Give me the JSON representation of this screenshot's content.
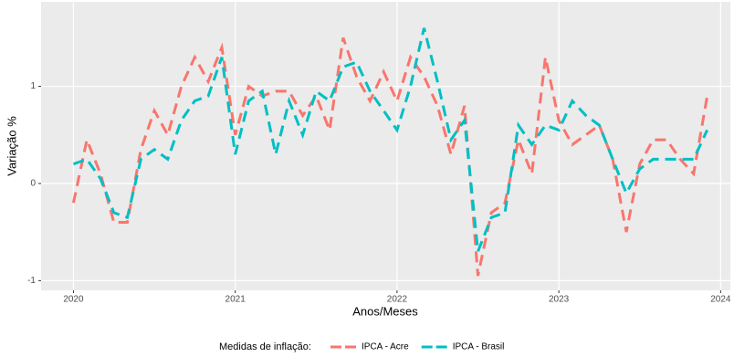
{
  "chart_data": {
    "type": "line",
    "x_label": "Anos/Meses",
    "y_label": "Variação %",
    "x": [
      2020,
      2020.083,
      2020.167,
      2020.25,
      2020.333,
      2020.417,
      2020.5,
      2020.583,
      2020.667,
      2020.75,
      2020.833,
      2020.917,
      2021,
      2021.083,
      2021.167,
      2021.25,
      2021.333,
      2021.417,
      2021.5,
      2021.583,
      2021.667,
      2021.75,
      2021.833,
      2021.917,
      2022,
      2022.083,
      2022.167,
      2022.25,
      2022.333,
      2022.417,
      2022.5,
      2022.583,
      2022.667,
      2022.75,
      2022.833,
      2022.917,
      2023,
      2023.083,
      2023.167,
      2023.25,
      2023.333,
      2023.417,
      2023.5,
      2023.583,
      2023.667,
      2023.75,
      2023.833,
      2023.917
    ],
    "series": [
      {
        "name": "IPCA - Acre",
        "color": "#F8766D",
        "values": [
          -0.2,
          0.45,
          0.1,
          -0.4,
          -0.4,
          0.35,
          0.75,
          0.5,
          1.0,
          1.3,
          1.05,
          1.4,
          0.5,
          1.0,
          0.9,
          0.95,
          0.95,
          0.7,
          0.9,
          0.55,
          1.5,
          1.1,
          0.85,
          1.15,
          0.85,
          1.3,
          1.1,
          0.8,
          0.3,
          0.8,
          -0.95,
          -0.3,
          -0.2,
          0.45,
          0.1,
          1.3,
          0.65,
          0.4,
          0.5,
          0.6,
          0.25,
          -0.5,
          0.2,
          0.45,
          0.45,
          0.25,
          0.1,
          0.9
        ]
      },
      {
        "name": "IPCA - Brasil",
        "color": "#00BFC4",
        "values": [
          0.2,
          0.25,
          0.05,
          -0.3,
          -0.35,
          0.25,
          0.35,
          0.25,
          0.65,
          0.85,
          0.9,
          1.3,
          0.3,
          0.85,
          0.95,
          0.3,
          0.85,
          0.5,
          0.95,
          0.85,
          1.2,
          1.25,
          0.95,
          0.75,
          0.55,
          1.0,
          1.6,
          1.05,
          0.45,
          0.65,
          -0.7,
          -0.35,
          -0.3,
          0.6,
          0.4,
          0.6,
          0.55,
          0.85,
          0.7,
          0.6,
          0.25,
          -0.1,
          0.15,
          0.25,
          0.25,
          0.25,
          0.25,
          0.55
        ]
      }
    ],
    "xlim": [
      2019.8,
      2024.06
    ],
    "xticks": [
      2020,
      2021,
      2022,
      2023,
      2024
    ],
    "ylim": [
      -1.1,
      1.87
    ],
    "yticks": [
      -1,
      0,
      1
    ],
    "grid": true,
    "legend_title": "Medidas de inflação:",
    "legend_position": "bottom"
  }
}
